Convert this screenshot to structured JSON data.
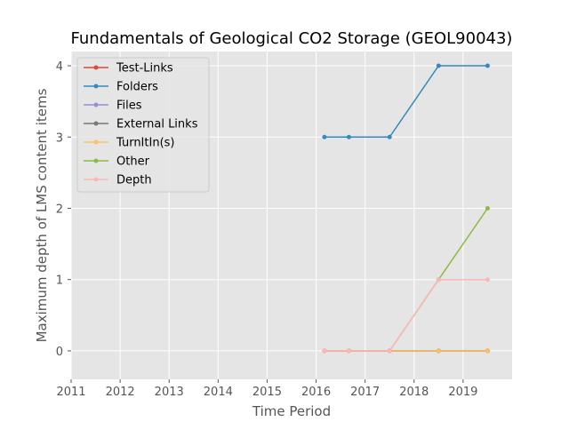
{
  "chart_data": {
    "type": "line",
    "title": "Fundamentals of Geological CO2 Storage (GEOL90043)",
    "xlabel": "Time Period",
    "ylabel": "Maximum depth of LMS content items",
    "xlim": [
      2011,
      2020
    ],
    "ylim": [
      -0.4,
      4.2
    ],
    "xticks": [
      2011,
      2012,
      2013,
      2014,
      2015,
      2016,
      2017,
      2018,
      2019
    ],
    "yticks": [
      0,
      1,
      2,
      3,
      4
    ],
    "grid": true,
    "legend_position": "top-left",
    "x": [
      2016.17,
      2016.67,
      2017.5,
      2018.5,
      2019.5
    ],
    "series": [
      {
        "name": "Test-Links",
        "color": "#E24A33",
        "values": [
          0,
          0,
          0,
          0,
          0
        ]
      },
      {
        "name": "Folders",
        "color": "#348ABD",
        "values": [
          3,
          3,
          3,
          4,
          4
        ]
      },
      {
        "name": "Files",
        "color": "#988ED5",
        "values": [
          0,
          0,
          0,
          0,
          0
        ]
      },
      {
        "name": "External Links",
        "color": "#777777",
        "values": [
          0,
          0,
          0,
          0,
          0
        ]
      },
      {
        "name": "TurnItIn(s)",
        "color": "#FBC15E",
        "values": [
          0,
          0,
          0,
          0,
          0
        ]
      },
      {
        "name": "Other",
        "color": "#8EBA42",
        "values": [
          0,
          0,
          0,
          1,
          2
        ]
      },
      {
        "name": "Depth",
        "color": "#FFB5B8",
        "values": [
          0,
          0,
          0,
          1,
          1
        ]
      }
    ]
  }
}
